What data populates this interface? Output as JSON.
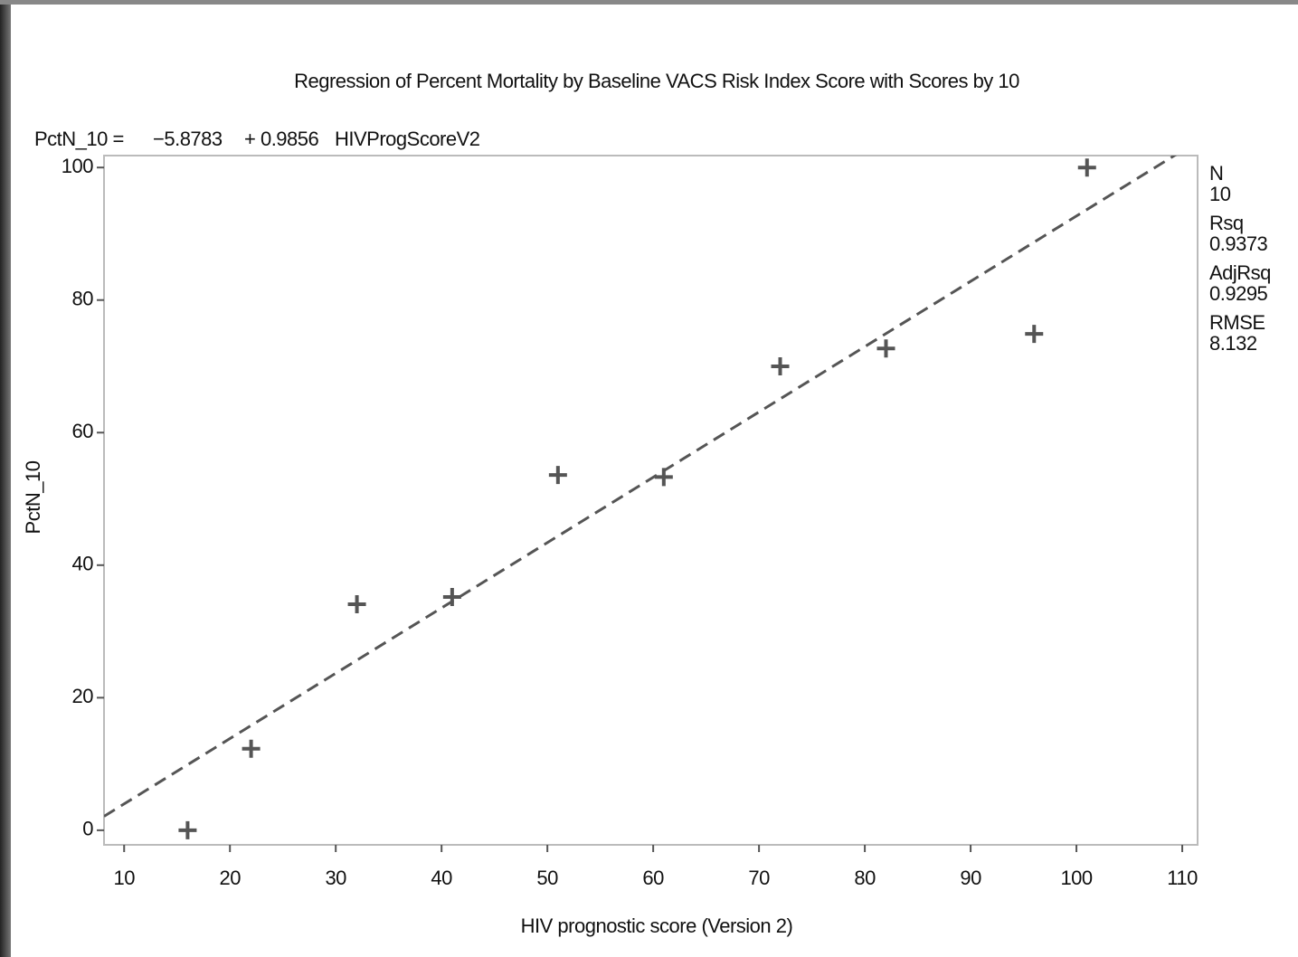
{
  "chart_data": {
    "type": "scatter",
    "title": "Regression of Percent Mortality by Baseline VACS Risk Index Score with Scores by 10",
    "fit": {
      "lhs": "PctN_10 =",
      "intercept": {
        "value": -5.8783,
        "label": "−5.8783"
      },
      "slope": {
        "value": 0.9856,
        "label": "+ 0.9856"
      },
      "term": "HIVProgScoreV2"
    },
    "x_label": "HIV prognostic score (Version 2)",
    "y_label": "PctN_10",
    "x": [
      16,
      22,
      32,
      41,
      51,
      61,
      72,
      82,
      96,
      101
    ],
    "y": [
      0,
      12.3,
      34.1,
      35.2,
      53.6,
      53.3,
      70,
      72.7,
      74.9,
      100
    ],
    "color": "#000000",
    "xlim": [
      8.1,
      111.45
    ],
    "ylim": [
      -2.2,
      101.8
    ],
    "xticks": [
      10,
      20,
      30,
      40,
      50,
      60,
      70,
      80,
      90,
      100,
      110
    ],
    "yticks": [
      0,
      20,
      40,
      60,
      80,
      100
    ],
    "stats": [
      {
        "name": "N",
        "value": 10
      },
      {
        "name": "Rsq",
        "value": 0.9373
      },
      {
        "name": "AdjRsq",
        "value": 0.9295
      },
      {
        "name": "RMSE",
        "value": 8.132
      }
    ]
  }
}
